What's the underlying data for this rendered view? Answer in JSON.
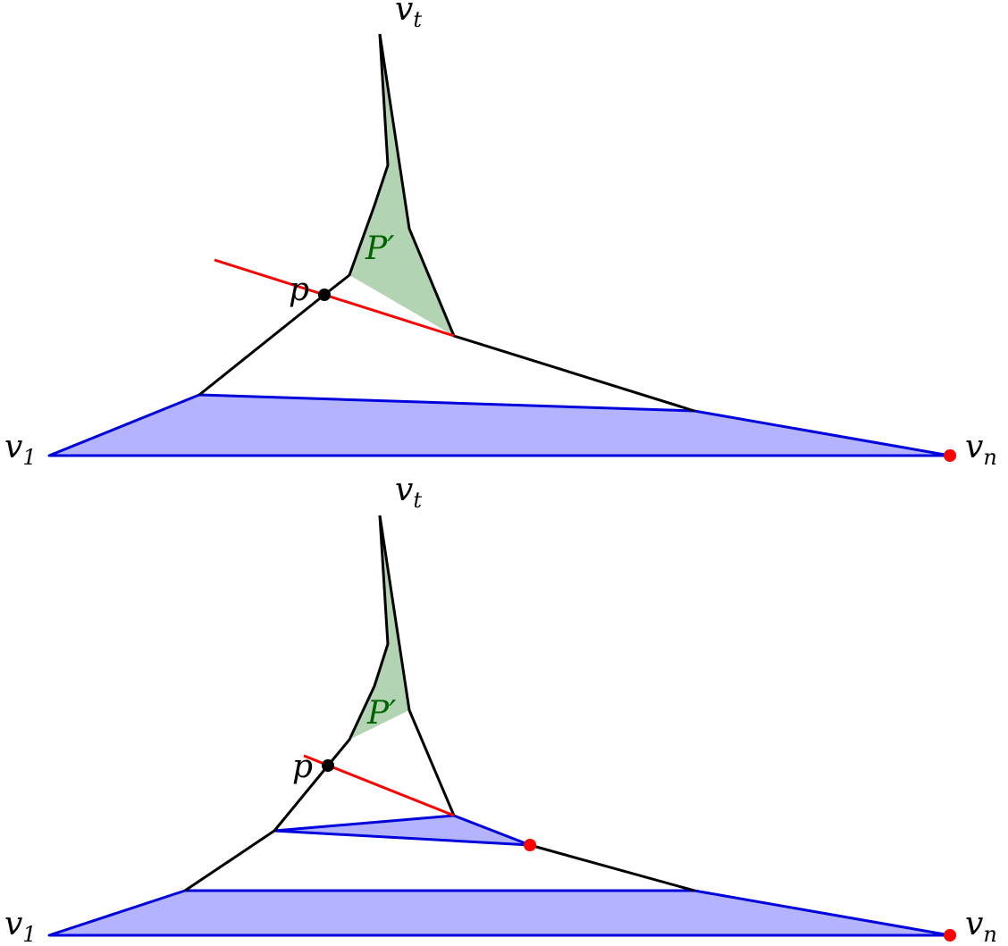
{
  "colors": {
    "blue_fill": "#b3b3ff",
    "blue_stroke": "#0000dd",
    "green_fill": "#b3d4b3",
    "red": "#ff0000",
    "black": "#000000",
    "label_green": "#006400"
  },
  "top_panel": {
    "label_v1_base": "v",
    "label_v1_sub": "1",
    "label_vn_base": "v",
    "label_vn_sub": "n",
    "label_vt_base": "v",
    "label_vt_sub": "t",
    "label_p": "p",
    "label_P_prime": "P′"
  },
  "bottom_panel": {
    "label_v1_base": "v",
    "label_v1_sub": "1",
    "label_vn_base": "v",
    "label_vn_sub": "n",
    "label_vt_base": "v",
    "label_vt_sub": "t",
    "label_p": "p",
    "label_P_prime": "P′"
  }
}
